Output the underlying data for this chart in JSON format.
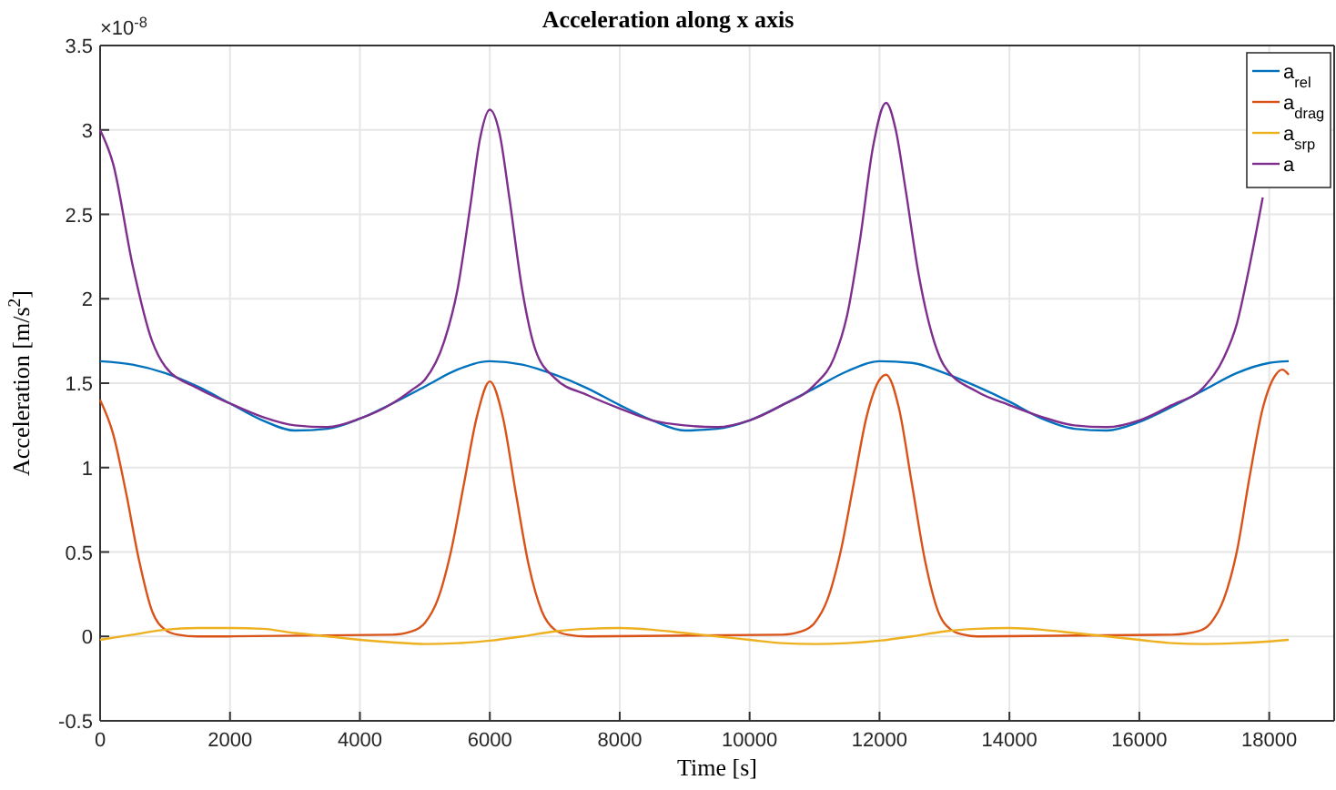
{
  "chart_data": {
    "type": "line",
    "title": "Acceleration along x axis",
    "xlabel": "Time [s]",
    "ylabel": "Acceleration [m/s$^{2}$]",
    "annotations": [
      "×10$^{-8}$"
    ],
    "xlim": [
      0,
      19000
    ],
    "xticks": [
      0,
      2000,
      4000,
      6000,
      8000,
      10000,
      12000,
      14000,
      16000,
      18000
    ],
    "ylim": [
      -0.5,
      3.5
    ],
    "yticks": [
      -0.5,
      0,
      0.5,
      1,
      1.5,
      2,
      2.5,
      3,
      3.5
    ],
    "grid": true,
    "legend": "top right",
    "line_style": "solid",
    "marker": "none",
    "series": [
      {
        "name": "a$_{rel}$",
        "color": "#0072bd",
        "x": [
          0,
          500,
          1000,
          1500,
          2000,
          2500,
          3000,
          3500,
          4000,
          4500,
          5000,
          5500,
          6000,
          6500,
          7000,
          7500,
          8000,
          8500,
          9000,
          9500,
          10000,
          10500,
          11000,
          11500,
          12000,
          12500,
          13000,
          13500,
          14000,
          14500,
          15000,
          15500,
          16000,
          16500,
          17000,
          17500,
          18000,
          18300
        ],
        "values": [
          1.63,
          1.61,
          1.56,
          1.48,
          1.38,
          1.28,
          1.22,
          1.23,
          1.29,
          1.38,
          1.48,
          1.58,
          1.63,
          1.61,
          1.55,
          1.47,
          1.37,
          1.28,
          1.22,
          1.23,
          1.28,
          1.37,
          1.47,
          1.57,
          1.63,
          1.62,
          1.56,
          1.48,
          1.39,
          1.29,
          1.23,
          1.22,
          1.27,
          1.36,
          1.46,
          1.56,
          1.62,
          1.63
        ]
      },
      {
        "name": "a$_{drag}$",
        "color": "#d95319",
        "x": [
          0,
          200,
          400,
          600,
          800,
          1000,
          1200,
          1500,
          4500,
          4800,
          5000,
          5200,
          5400,
          5600,
          5800,
          6000,
          6200,
          6400,
          6600,
          6800,
          7000,
          7200,
          7500,
          10500,
          10800,
          11000,
          11200,
          11400,
          11600,
          11800,
          12000,
          12100,
          12300,
          12500,
          12700,
          12900,
          13100,
          13300,
          13500,
          16500,
          16900,
          17100,
          17300,
          17500,
          17700,
          17900,
          18100,
          18200,
          18300
        ],
        "values": [
          1.4,
          1.2,
          0.85,
          0.45,
          0.15,
          0.04,
          0.01,
          0,
          0.01,
          0.03,
          0.08,
          0.22,
          0.5,
          0.9,
          1.3,
          1.51,
          1.3,
          0.85,
          0.42,
          0.15,
          0.04,
          0.01,
          0,
          0.01,
          0.03,
          0.08,
          0.22,
          0.5,
          0.9,
          1.3,
          1.52,
          1.55,
          1.35,
          0.9,
          0.45,
          0.15,
          0.04,
          0.01,
          0,
          0.01,
          0.03,
          0.08,
          0.22,
          0.5,
          0.95,
          1.35,
          1.55,
          1.58,
          1.55
        ]
      },
      {
        "name": "a$_{srp}$",
        "color": "#edb120",
        "x": [
          0,
          500,
          1000,
          1500,
          2000,
          2500,
          3000,
          3500,
          4000,
          4500,
          5000,
          5500,
          6000,
          6500,
          7000,
          7500,
          8000,
          8500,
          9000,
          9500,
          10000,
          10500,
          11000,
          11500,
          12000,
          12500,
          13000,
          13500,
          14000,
          14500,
          15000,
          15500,
          16000,
          16500,
          17000,
          17500,
          18000,
          18300
        ],
        "values": [
          -0.02,
          0.01,
          0.04,
          0.05,
          0.05,
          0.045,
          0.02,
          0,
          -0.02,
          -0.035,
          -0.045,
          -0.04,
          -0.025,
          0,
          0.03,
          0.045,
          0.05,
          0.04,
          0.02,
          0,
          -0.02,
          -0.04,
          -0.045,
          -0.04,
          -0.025,
          0,
          0.03,
          0.045,
          0.05,
          0.04,
          0.02,
          0,
          -0.02,
          -0.04,
          -0.045,
          -0.04,
          -0.03,
          -0.02
        ]
      },
      {
        "name": "a",
        "color": "#7e2f8e",
        "x": [
          0,
          200,
          500,
          800,
          1000,
          1500,
          2000,
          2500,
          3000,
          3500,
          4000,
          4500,
          4800,
          5000,
          5300,
          5500,
          5700,
          5850,
          6000,
          6150,
          6300,
          6500,
          6700,
          7000,
          7500,
          8000,
          8500,
          9000,
          9500,
          10000,
          10500,
          11000,
          11300,
          11500,
          11700,
          11900,
          12100,
          12250,
          12400,
          12600,
          12800,
          13000,
          13500,
          14000,
          14500,
          15000,
          15500,
          16000,
          16500,
          17000,
          17300,
          17500,
          17700,
          17900
        ],
        "values": [
          3.0,
          2.8,
          2.2,
          1.75,
          1.6,
          1.47,
          1.38,
          1.3,
          1.25,
          1.24,
          1.29,
          1.38,
          1.46,
          1.52,
          1.75,
          2.05,
          2.55,
          2.95,
          3.12,
          2.98,
          2.6,
          2.05,
          1.7,
          1.53,
          1.43,
          1.35,
          1.28,
          1.25,
          1.24,
          1.28,
          1.37,
          1.49,
          1.65,
          1.9,
          2.35,
          2.9,
          3.16,
          3.0,
          2.65,
          2.15,
          1.8,
          1.6,
          1.45,
          1.37,
          1.3,
          1.25,
          1.24,
          1.28,
          1.37,
          1.48,
          1.65,
          1.85,
          2.2,
          2.6
        ]
      }
    ]
  }
}
